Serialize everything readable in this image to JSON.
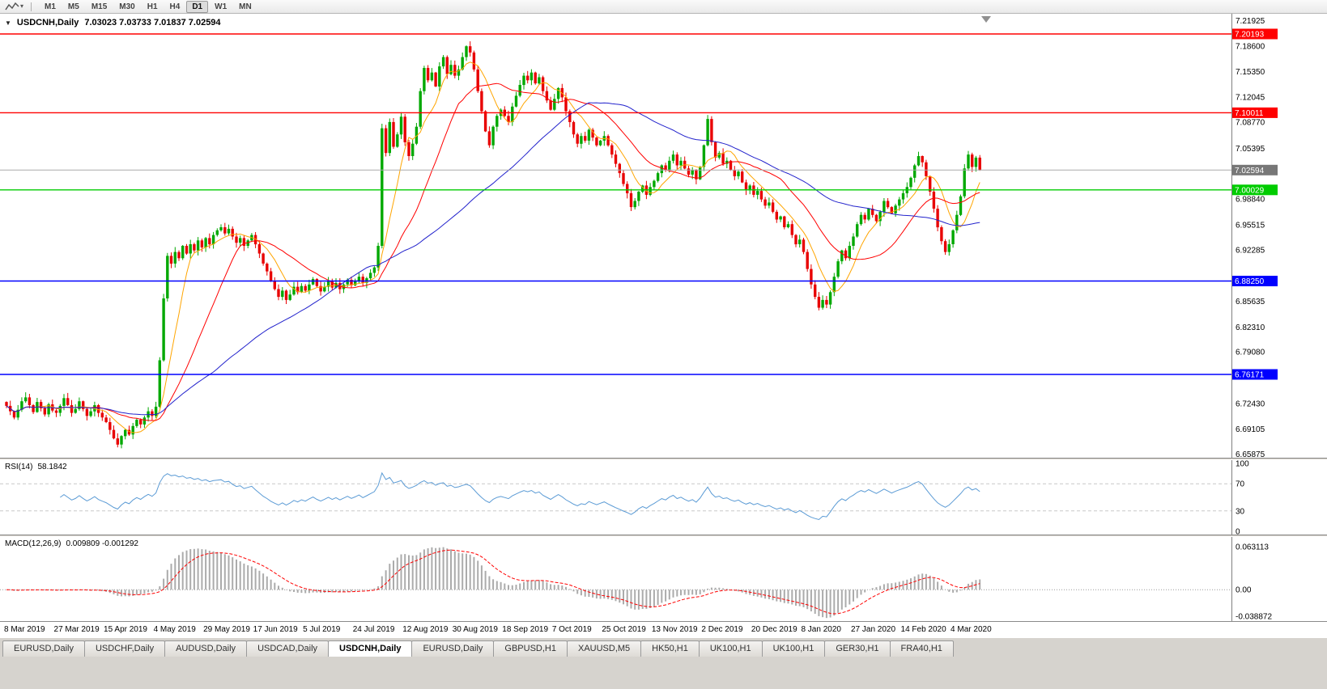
{
  "icons": {
    "dropdown_caret": "▾",
    "title_marker": "▼"
  },
  "colors": {
    "candle_up": "#00A800",
    "candle_down": "#E80000",
    "ma_fast": "#FFA500",
    "ma_mid": "#FF0000",
    "ma_slow": "#2222CC",
    "rsi_line": "#5B9BD5",
    "macd_hist": "#ABABAB",
    "macd_signal": "#FF0000",
    "level_red": "#FF0000",
    "level_green": "#00CC00",
    "level_blue": "#0000FF",
    "current_price_badge": "#777777",
    "axis_border": "#808080"
  },
  "toolbar": {
    "timeframes": [
      "M1",
      "M5",
      "M15",
      "M30",
      "H1",
      "H4",
      "D1",
      "W1",
      "MN"
    ],
    "active": "D1"
  },
  "chart": {
    "symbol_period": "USDCNH,Daily",
    "ohlc_text": "7.03023 7.03733 7.01837 7.02594"
  },
  "panels": {
    "rsi": {
      "label": "RSI(14)",
      "value": "58.1842"
    },
    "macd": {
      "label": "MACD(12,26,9)",
      "values": "0.009809 -0.001292"
    }
  },
  "tabs": [
    {
      "label": "EURUSD,Daily"
    },
    {
      "label": "USDCHF,Daily"
    },
    {
      "label": "AUDUSD,Daily"
    },
    {
      "label": "USDCAD,Daily"
    },
    {
      "label": "USDCNH,Daily",
      "active": true
    },
    {
      "label": "EURUSD,Daily"
    },
    {
      "label": "GBPUSD,H1"
    },
    {
      "label": "XAUUSD,M5"
    },
    {
      "label": "HK50,H1"
    },
    {
      "label": "UK100,H1"
    },
    {
      "label": "UK100,H1"
    },
    {
      "label": "GER30,H1"
    },
    {
      "label": "FRA40,H1"
    }
  ],
  "chart_data": {
    "type": "candlestick",
    "symbol": "USDCNH",
    "period": "Daily",
    "ohlc_current": {
      "open": 7.03023,
      "high": 7.03733,
      "low": 7.01837,
      "close": 7.02594
    },
    "ylim": [
      6.654,
      7.228
    ],
    "dates": [
      "8 Mar 2019",
      "27 Mar 2019",
      "15 Apr 2019",
      "4 May 2019",
      "29 May 2019",
      "17 Jun 2019",
      "5 Jul 2019",
      "24 Jul 2019",
      "12 Aug 2019",
      "30 Aug 2019",
      "18 Sep 2019",
      "7 Oct 2019",
      "25 Oct 2019",
      "13 Nov 2019",
      "2 Dec 2019",
      "20 Dec 2019",
      "8 Jan 2020",
      "27 Jan 2020",
      "14 Feb 2020",
      "4 Mar 2020"
    ],
    "candles_per_date_tick": 13,
    "y_axis_ticks": [
      "7.21925",
      "7.18600",
      "7.15350",
      "7.12045",
      "7.08770",
      "7.05395",
      "6.98840",
      "6.95515",
      "6.92285",
      "6.85635",
      "6.82310",
      "6.79080",
      "6.72430",
      "6.69105",
      "6.65875"
    ],
    "horizontal_levels": [
      {
        "label": "7.20193",
        "price": 7.20193,
        "color": "#FF0000",
        "kind": "resistance"
      },
      {
        "label": "7.10011",
        "price": 7.10011,
        "color": "#FF0000",
        "kind": "resistance"
      },
      {
        "label": "7.02594",
        "price": 7.02594,
        "color": "#777777",
        "kind": "current-price"
      },
      {
        "label": "7.00029",
        "price": 7.00029,
        "color": "#00CC00",
        "kind": "support"
      },
      {
        "label": "6.88250",
        "price": 6.8825,
        "color": "#0000FF",
        "kind": "support"
      },
      {
        "label": "6.76171",
        "price": 6.76171,
        "color": "#0000FF",
        "kind": "support"
      }
    ],
    "moving_averages": [
      {
        "name": "MA fast",
        "period": 8,
        "color": "#FFA500"
      },
      {
        "name": "MA mid",
        "period": 21,
        "color": "#FF0000"
      },
      {
        "name": "MA slow",
        "period": 55,
        "color": "#2222CC"
      }
    ],
    "rsi": {
      "period": 14,
      "last": 58.1842,
      "overbought": 70,
      "oversold": 30,
      "axis_ticks": [
        "100",
        "70",
        "30",
        "0"
      ]
    },
    "macd": {
      "fast": 12,
      "slow": 26,
      "signal": 9,
      "last_macd": 0.009809,
      "last_signal": -0.001292,
      "axis_ticks": [
        "0.063113",
        "0.00",
        "-0.038872"
      ]
    },
    "closes": [
      6.721,
      6.714,
      6.706,
      6.716,
      6.727,
      6.732,
      6.722,
      6.713,
      6.726,
      6.718,
      6.71,
      6.723,
      6.715,
      6.712,
      6.721,
      6.731,
      6.722,
      6.712,
      6.717,
      6.727,
      6.717,
      6.708,
      6.714,
      6.722,
      6.712,
      6.706,
      6.7,
      6.69,
      6.679,
      6.671,
      6.682,
      6.69,
      6.684,
      6.695,
      6.703,
      6.697,
      6.706,
      6.714,
      6.708,
      6.72,
      6.78,
      6.86,
      6.915,
      6.905,
      6.92,
      6.912,
      6.928,
      6.918,
      6.93,
      6.922,
      6.935,
      6.926,
      6.938,
      6.93,
      6.942,
      6.948,
      6.952,
      6.944,
      6.95,
      6.94,
      6.932,
      6.938,
      6.928,
      6.935,
      6.942,
      6.93,
      6.918,
      6.905,
      6.895,
      6.882,
      6.872,
      6.862,
      6.87,
      6.858,
      6.865,
      6.875,
      6.868,
      6.876,
      6.87,
      6.878,
      6.885,
      6.876,
      6.869,
      6.875,
      6.882,
      6.874,
      6.88,
      6.872,
      6.878,
      6.884,
      6.877,
      6.882,
      6.888,
      6.88,
      6.886,
      6.893,
      6.9,
      6.928,
      7.08,
      7.048,
      7.088,
      7.056,
      7.072,
      7.095,
      7.062,
      7.044,
      7.06,
      7.082,
      7.128,
      7.158,
      7.142,
      7.152,
      7.134,
      7.16,
      7.172,
      7.15,
      7.162,
      7.148,
      7.156,
      7.172,
      7.186,
      7.178,
      7.156,
      7.128,
      7.102,
      7.076,
      7.058,
      7.082,
      7.096,
      7.104,
      7.096,
      7.088,
      7.108,
      7.122,
      7.136,
      7.148,
      7.142,
      7.152,
      7.138,
      7.146,
      7.128,
      7.116,
      7.104,
      7.118,
      7.132,
      7.12,
      7.102,
      7.088,
      7.072,
      7.06,
      7.07,
      7.064,
      7.078,
      7.068,
      7.058,
      7.064,
      7.07,
      7.058,
      7.046,
      7.034,
      7.022,
      7.008,
      6.996,
      6.978,
      6.986,
      6.998,
      7.006,
      6.994,
      7.004,
      7.012,
      7.022,
      7.032,
      7.026,
      7.038,
      7.046,
      7.032,
      7.038,
      7.028,
      7.02,
      7.026,
      7.014,
      7.03,
      7.058,
      7.092,
      7.062,
      7.042,
      7.048,
      7.034,
      7.038,
      7.026,
      7.018,
      7.024,
      7.01,
      7.0,
      7.006,
      6.994,
      6.999,
      6.988,
      6.98,
      6.984,
      6.972,
      6.962,
      6.966,
      6.952,
      6.956,
      6.942,
      6.93,
      6.936,
      6.92,
      6.898,
      6.878,
      6.862,
      6.848,
      6.858,
      6.852,
      6.868,
      6.888,
      6.908,
      6.922,
      6.912,
      6.928,
      6.94,
      6.956,
      6.968,
      6.962,
      6.976,
      6.968,
      6.96,
      6.972,
      6.986,
      6.978,
      6.97,
      6.98,
      6.988,
      6.996,
      7.004,
      7.016,
      7.032,
      7.044,
      7.036,
      7.018,
      6.998,
      6.976,
      6.952,
      6.934,
      6.92,
      6.93,
      6.948,
      6.968,
      6.992,
      7.028,
      7.046,
      7.03,
      7.042,
      7.026
    ]
  }
}
